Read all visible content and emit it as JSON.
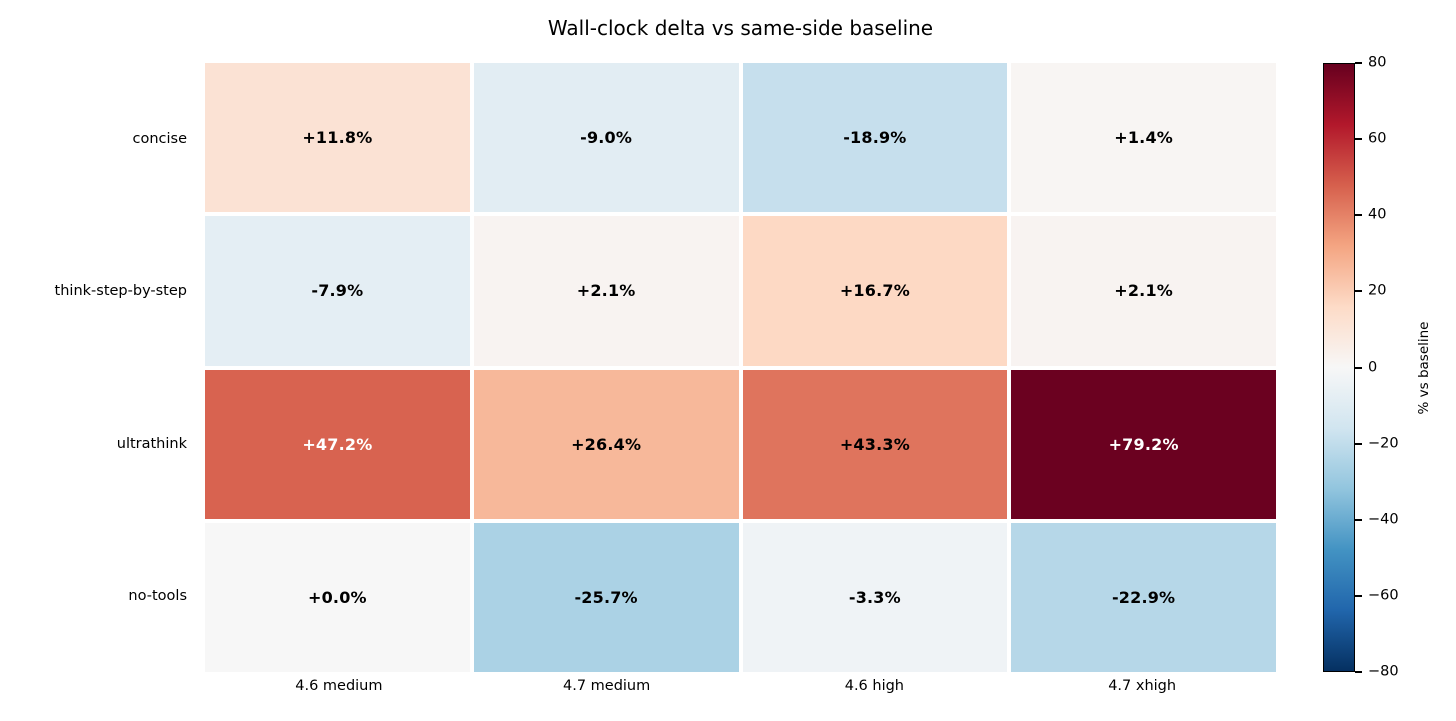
{
  "title": "Wall-clock delta vs same-side baseline",
  "colors": {
    "background": "#ffffff",
    "cell_text_dark": "#000000",
    "cell_text_light": "#ffffff",
    "grid_gap": "#ffffff",
    "axis_text": "#000000"
  },
  "chart_data": {
    "type": "heatmap",
    "title": "Wall-clock delta vs same-side baseline",
    "rows": [
      "concise",
      "think-step-by-step",
      "ultrathink",
      "no-tools"
    ],
    "columns": [
      "4.6 medium",
      "4.7 medium",
      "4.6 high",
      "4.7 xhigh"
    ],
    "values": [
      [
        11.8,
        -9.0,
        -18.9,
        1.4
      ],
      [
        -7.9,
        2.1,
        16.7,
        2.1
      ],
      [
        47.2,
        26.4,
        43.3,
        79.2
      ],
      [
        0.0,
        -25.7,
        -3.3,
        -22.9
      ]
    ],
    "cell_labels": [
      [
        "+11.8%",
        "-9.0%",
        "-18.9%",
        "+1.4%"
      ],
      [
        "-7.9%",
        "+2.1%",
        "+16.7%",
        "+2.1%"
      ],
      [
        "+47.2%",
        "+26.4%",
        "+43.3%",
        "+79.2%"
      ],
      [
        "+0.0%",
        "-25.7%",
        "-3.3%",
        "-22.9%"
      ]
    ],
    "white_text_threshold": 45,
    "colorbar": {
      "label": "% vs baseline",
      "vmin": -80,
      "vmax": 80,
      "ticks": [
        {
          "value": 80,
          "label": "80"
        },
        {
          "value": 60,
          "label": "60"
        },
        {
          "value": 40,
          "label": "40"
        },
        {
          "value": 20,
          "label": "20"
        },
        {
          "value": 0,
          "label": "0"
        },
        {
          "value": -20,
          "label": "−20"
        },
        {
          "value": -40,
          "label": "−40"
        },
        {
          "value": -60,
          "label": "−60"
        },
        {
          "value": -80,
          "label": "−80"
        }
      ],
      "colormap": "RdBu_r",
      "stops_red_to_blue": [
        "#67001f",
        "#b2182b",
        "#d6604d",
        "#f4a582",
        "#fddbc7",
        "#f7f7f7",
        "#d1e5f0",
        "#92c5de",
        "#4393c3",
        "#2166ac",
        "#053061"
      ]
    }
  }
}
